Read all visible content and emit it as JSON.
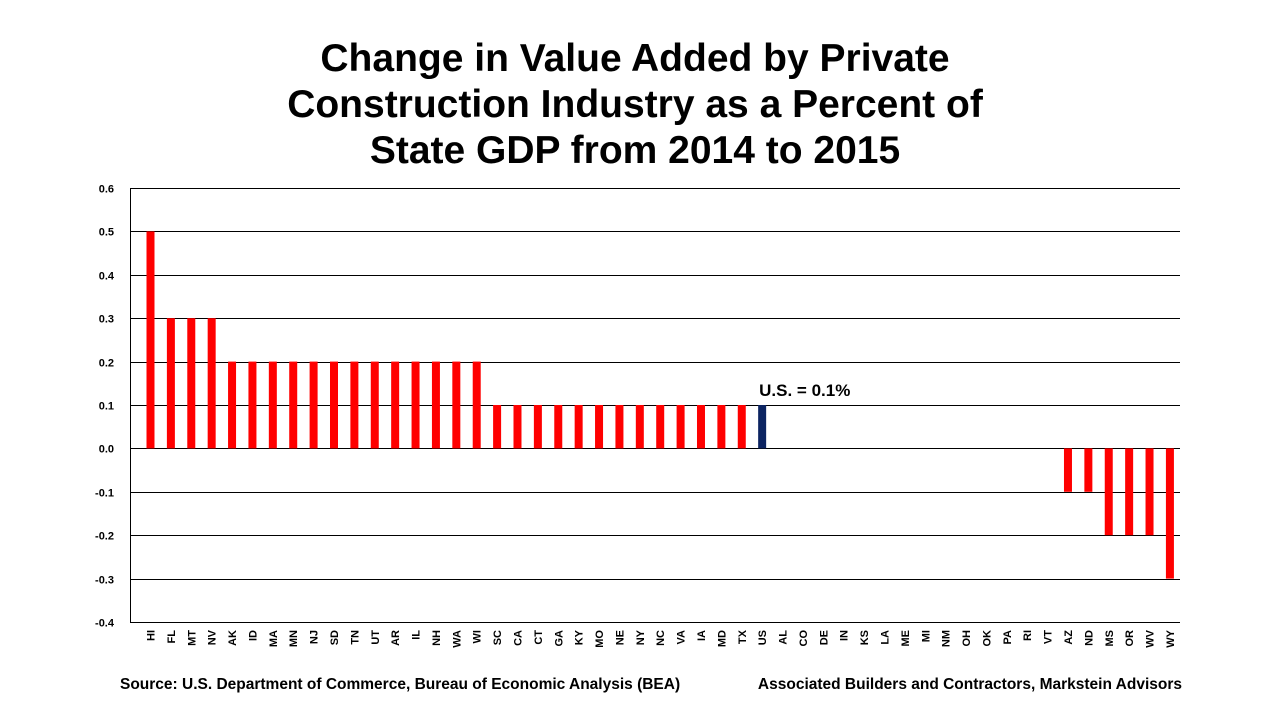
{
  "chart_data": {
    "type": "bar",
    "title": "Change in Value Added by Private Construction Industry as a Percent of State GDP from 2014 to 2015",
    "title_lines": [
      "Change in Value Added by Private",
      "Construction Industry as a Percent of",
      "State GDP from 2014 to 2015"
    ],
    "xlabel": "",
    "ylabel": "",
    "ylim": [
      -0.4,
      0.6
    ],
    "yticks": [
      0.6,
      0.5,
      0.4,
      0.3,
      0.2,
      0.1,
      0.0,
      -0.1,
      -0.2,
      -0.3,
      -0.4
    ],
    "ytick_labels": [
      "0.6",
      "0.5",
      "0.4",
      "0.3",
      "0.2",
      "0.1",
      "0.0",
      "-0.1",
      "-0.2",
      "-0.3",
      "-0.4"
    ],
    "grid": true,
    "categories": [
      "HI",
      "FL",
      "MT",
      "NV",
      "AK",
      "ID",
      "MA",
      "MN",
      "NJ",
      "SD",
      "TN",
      "UT",
      "AR",
      "IL",
      "NH",
      "WA",
      "WI",
      "SC",
      "CA",
      "CT",
      "GA",
      "KY",
      "MO",
      "NE",
      "NY",
      "NC",
      "VA",
      "IA",
      "MD",
      "TX",
      "US",
      "AL",
      "CO",
      "DE",
      "IN",
      "KS",
      "LA",
      "ME",
      "MI",
      "NM",
      "OH",
      "OK",
      "PA",
      "RI",
      "VT",
      "AZ",
      "ND",
      "MS",
      "OR",
      "WV",
      "WY"
    ],
    "values": [
      0.5,
      0.3,
      0.3,
      0.3,
      0.2,
      0.2,
      0.2,
      0.2,
      0.2,
      0.2,
      0.2,
      0.2,
      0.2,
      0.2,
      0.2,
      0.2,
      0.2,
      0.1,
      0.1,
      0.1,
      0.1,
      0.1,
      0.1,
      0.1,
      0.1,
      0.1,
      0.1,
      0.1,
      0.1,
      0.1,
      0.1,
      0.0,
      0.0,
      0.0,
      0.0,
      0.0,
      0.0,
      0.0,
      0.0,
      0.0,
      0.0,
      0.0,
      0.0,
      0.0,
      0.0,
      -0.1,
      -0.1,
      -0.2,
      -0.2,
      -0.2,
      -0.3
    ],
    "highlight_category": "US",
    "colors": {
      "bar": "#ff0000",
      "highlight": "#0c2461",
      "grid": "#000000"
    },
    "annotations": [
      {
        "text": "U.S. = 0.1%",
        "category": "US",
        "value": 0.1
      }
    ],
    "legend": "none"
  },
  "footer": {
    "source": "Source: U.S. Department of Commerce, Bureau of Economic Analysis (BEA)",
    "credit": "Associated Builders and Contractors, Markstein Advisors"
  }
}
